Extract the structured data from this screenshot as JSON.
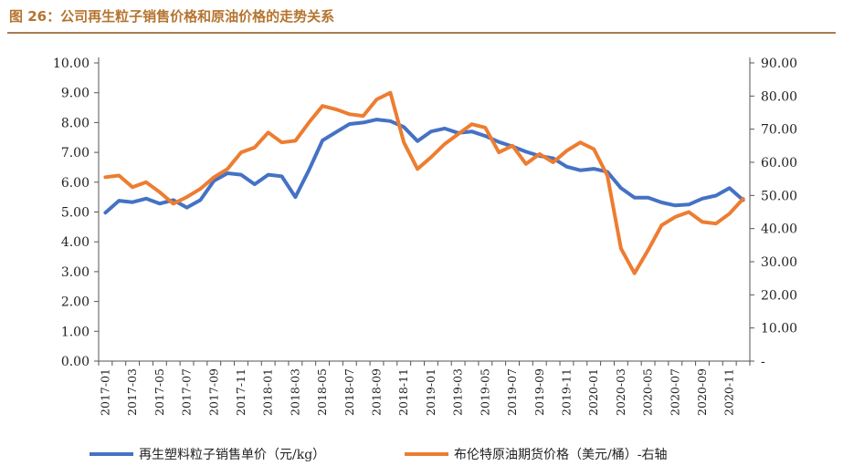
{
  "figure": {
    "title": "图 26：公司再生粒子销售价格和原油价格的走势关系"
  },
  "chart_data": {
    "type": "line",
    "x": [
      "2017-01",
      "2017-02",
      "2017-03",
      "2017-04",
      "2017-05",
      "2017-06",
      "2017-07",
      "2017-08",
      "2017-09",
      "2017-10",
      "2017-11",
      "2017-12",
      "2018-01",
      "2018-02",
      "2018-03",
      "2018-04",
      "2018-05",
      "2018-06",
      "2018-07",
      "2018-08",
      "2018-09",
      "2018-10",
      "2018-11",
      "2018-12",
      "2019-01",
      "2019-02",
      "2019-03",
      "2019-04",
      "2019-05",
      "2019-06",
      "2019-07",
      "2019-08",
      "2019-09",
      "2019-10",
      "2019-11",
      "2019-12",
      "2020-01",
      "2020-02",
      "2020-03",
      "2020-04",
      "2020-05",
      "2020-06",
      "2020-07",
      "2020-08",
      "2020-09",
      "2020-10",
      "2020-11",
      "2020-12"
    ],
    "x_tick_labels": [
      "2017-01",
      "2017-03",
      "2017-05",
      "2017-07",
      "2017-09",
      "2017-11",
      "2018-01",
      "2018-03",
      "2018-05",
      "2018-07",
      "2018-09",
      "2018-11",
      "2019-01",
      "2019-03",
      "2019-05",
      "2019-07",
      "2019-09",
      "2019-11",
      "2020-01",
      "2020-03",
      "2020-05",
      "2020-07",
      "2020-09",
      "2020-11"
    ],
    "y_left": {
      "ylim": [
        0,
        10
      ],
      "ticks": [
        "0.00",
        "1.00",
        "2.00",
        "3.00",
        "4.00",
        "5.00",
        "6.00",
        "7.00",
        "8.00",
        "9.00",
        "10.00"
      ]
    },
    "y_right": {
      "ylim": [
        0,
        90
      ],
      "ticks": [
        "-",
        "10.00",
        "20.00",
        "30.00",
        "40.00",
        "50.00",
        "60.00",
        "70.00",
        "80.00",
        "90.00"
      ]
    },
    "series": [
      {
        "name": "再生塑料粒子销售单价（元/kg）",
        "axis": "left",
        "color": "#4472c4",
        "values": [
          4.98,
          5.38,
          5.33,
          5.45,
          5.28,
          5.4,
          5.15,
          5.4,
          6.05,
          6.3,
          6.25,
          5.93,
          6.25,
          6.2,
          5.5,
          6.4,
          7.4,
          7.68,
          7.95,
          8.0,
          8.1,
          8.05,
          7.85,
          7.38,
          7.7,
          7.8,
          7.65,
          7.7,
          7.55,
          7.35,
          7.2,
          7.02,
          6.88,
          6.8,
          6.52,
          6.4,
          6.45,
          6.35,
          5.8,
          5.48,
          5.48,
          5.32,
          5.22,
          5.25,
          5.45,
          5.55,
          5.8,
          5.4
        ]
      },
      {
        "name": "布伦特原油期货价格（美元/桶）-右轴",
        "axis": "right",
        "color": "#ed7d31",
        "values": [
          55.5,
          56.0,
          52.5,
          54.0,
          51.0,
          47.5,
          49.5,
          52.0,
          55.5,
          58.0,
          63.0,
          64.5,
          69.0,
          66.0,
          66.5,
          72.0,
          77.0,
          76.0,
          74.5,
          74.0,
          79.0,
          81.0,
          66.0,
          58.0,
          61.5,
          65.5,
          68.5,
          71.5,
          70.5,
          63.0,
          65.0,
          59.5,
          62.5,
          60.0,
          63.5,
          66.0,
          64.0,
          56.0,
          34.0,
          26.5,
          33.5,
          41.0,
          43.5,
          45.0,
          42.0,
          41.5,
          44.5,
          49.0
        ]
      }
    ]
  },
  "colors": {
    "title": "#b5742f",
    "rule": "#a87c52",
    "axis": "#555555"
  }
}
